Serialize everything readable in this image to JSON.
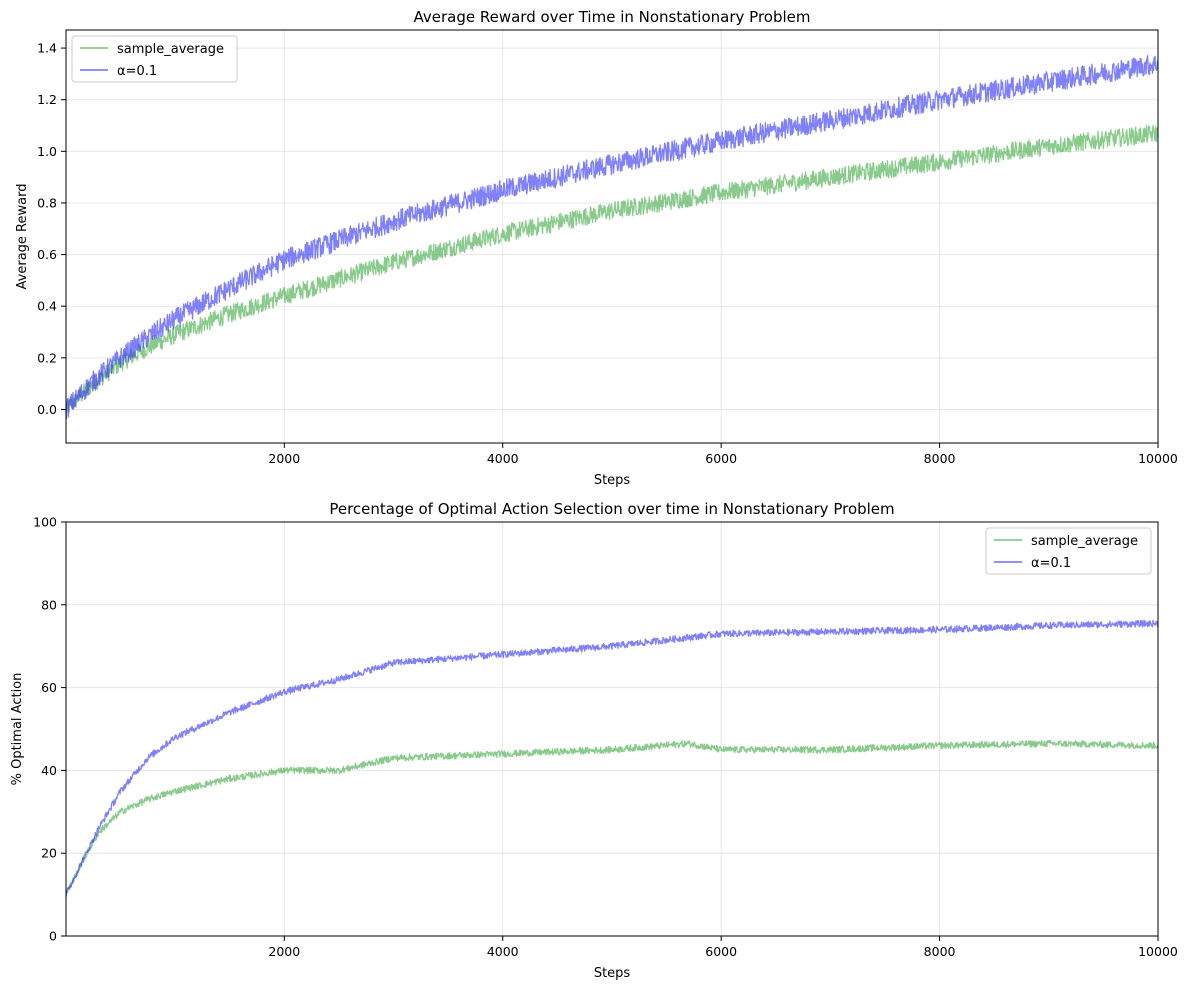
{
  "chart_data": [
    {
      "type": "line",
      "title": "Average Reward over Time in Nonstationary Problem",
      "xlabel": "Steps",
      "ylabel": "Average Reward",
      "xlim": [
        1,
        10000
      ],
      "ylim": [
        -0.13,
        1.47
      ],
      "grid": true,
      "legend_position": "upper-left",
      "x_ticks": [
        2000,
        4000,
        6000,
        8000,
        10000
      ],
      "y_ticks": [
        0.0,
        0.2,
        0.4,
        0.6,
        0.8,
        1.0,
        1.2,
        1.4
      ],
      "series": [
        {
          "name": "sample_average",
          "color": "#4caf50",
          "noise": 0.035,
          "x": [
            1,
            250,
            500,
            750,
            1000,
            1500,
            2000,
            3000,
            4000,
            5000,
            6000,
            7000,
            8000,
            9000,
            10000
          ],
          "y": [
            0.0,
            0.1,
            0.18,
            0.24,
            0.29,
            0.37,
            0.44,
            0.57,
            0.68,
            0.77,
            0.84,
            0.9,
            0.96,
            1.02,
            1.07
          ]
        },
        {
          "name": "α=0.1",
          "color": "#3c3cf5",
          "noise": 0.04,
          "x": [
            1,
            250,
            500,
            750,
            1000,
            1500,
            2000,
            3000,
            4000,
            5000,
            6000,
            7000,
            8000,
            9000,
            10000
          ],
          "y": [
            0.0,
            0.11,
            0.2,
            0.28,
            0.35,
            0.47,
            0.58,
            0.73,
            0.85,
            0.95,
            1.04,
            1.12,
            1.2,
            1.27,
            1.34
          ]
        }
      ]
    },
    {
      "type": "line",
      "title": "Percentage of Optimal Action Selection over time in Nonstationary Problem",
      "xlabel": "Steps",
      "ylabel": "% Optimal Action",
      "xlim": [
        1,
        10000
      ],
      "ylim": [
        0,
        100
      ],
      "grid": true,
      "legend_position": "upper-right",
      "x_ticks": [
        2000,
        4000,
        6000,
        8000,
        10000
      ],
      "y_ticks": [
        0,
        20,
        40,
        60,
        80,
        100
      ],
      "series": [
        {
          "name": "sample_average",
          "color": "#4caf50",
          "noise": 0.8,
          "x": [
            1,
            150,
            300,
            500,
            750,
            1000,
            1500,
            2000,
            2500,
            3000,
            4000,
            5000,
            5700,
            6000,
            7000,
            8000,
            9000,
            10000
          ],
          "y": [
            10,
            18,
            25,
            30,
            33,
            35,
            38,
            40,
            40,
            43,
            44,
            45,
            46.5,
            45,
            45,
            46,
            46.5,
            46
          ]
        },
        {
          "name": "α=0.1",
          "color": "#3c3cf5",
          "noise": 0.8,
          "x": [
            1,
            150,
            300,
            500,
            750,
            1000,
            1500,
            2000,
            2500,
            3000,
            4000,
            5000,
            6000,
            7000,
            8000,
            9000,
            10000
          ],
          "y": [
            10,
            18,
            26,
            35,
            43,
            48,
            54,
            59,
            62,
            66,
            68,
            70,
            73,
            73.5,
            74,
            75,
            75.5
          ]
        }
      ]
    }
  ]
}
